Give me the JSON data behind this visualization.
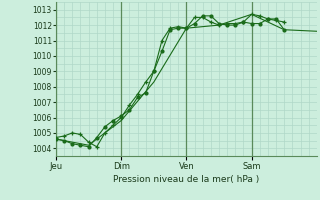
{
  "xlabel": "Pression niveau de la mer( hPa )",
  "bg_color": "#cceedd",
  "grid_color": "#aaccbb",
  "vline_color": "#5a8a5a",
  "line_color": "#1a6b1a",
  "marker_color": "#1a6b1a",
  "ylim": [
    1003.5,
    1013.5
  ],
  "yticks": [
    1004,
    1005,
    1006,
    1007,
    1008,
    1009,
    1010,
    1011,
    1012,
    1013
  ],
  "day_labels": [
    "Jeu",
    "Dim",
    "Ven",
    "Sam"
  ],
  "day_positions": [
    0,
    48,
    96,
    144
  ],
  "total_hours": 192,
  "series1_x": [
    0,
    6,
    12,
    18,
    24,
    30,
    36,
    42,
    48,
    54,
    60,
    66,
    72,
    78,
    84,
    90,
    96,
    102,
    108,
    114,
    120,
    126,
    132,
    138,
    144,
    150,
    156,
    162,
    168
  ],
  "series1_y": [
    1004.7,
    1004.8,
    1005.0,
    1004.9,
    1004.4,
    1004.1,
    1005.0,
    1005.5,
    1006.0,
    1006.8,
    1007.5,
    1008.3,
    1009.0,
    1011.0,
    1011.8,
    1011.9,
    1011.8,
    1012.5,
    1012.5,
    1012.2,
    1012.0,
    1012.1,
    1012.1,
    1012.2,
    1012.7,
    1012.6,
    1012.4,
    1012.3,
    1012.2
  ],
  "series2_x": [
    0,
    6,
    12,
    18,
    24,
    30,
    36,
    42,
    48,
    54,
    60,
    66,
    72,
    78,
    84,
    90,
    96,
    102,
    108,
    114,
    120,
    126,
    132,
    138,
    144,
    150,
    156,
    162,
    168
  ],
  "series2_y": [
    1004.6,
    1004.5,
    1004.3,
    1004.2,
    1004.1,
    1004.7,
    1005.4,
    1005.8,
    1006.1,
    1006.5,
    1007.3,
    1007.6,
    1009.0,
    1010.3,
    1011.7,
    1011.8,
    1011.8,
    1012.1,
    1012.6,
    1012.6,
    1012.1,
    1012.0,
    1012.0,
    1012.2,
    1012.1,
    1012.1,
    1012.4,
    1012.4,
    1011.7
  ],
  "series3_x": [
    0,
    24,
    48,
    72,
    96,
    120,
    144,
    168,
    192
  ],
  "series3_y": [
    1004.6,
    1004.2,
    1005.8,
    1008.3,
    1011.8,
    1012.0,
    1012.7,
    1011.7,
    1011.6
  ]
}
